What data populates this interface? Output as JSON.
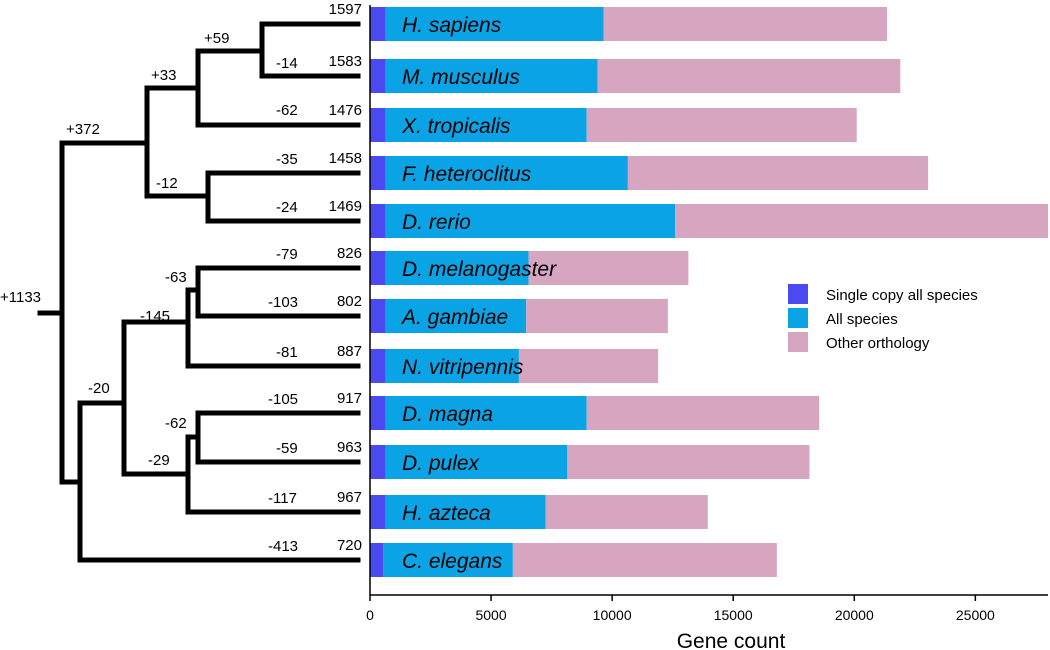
{
  "chart_data": {
    "type": "bar",
    "orientation": "horizontal",
    "stacked": true,
    "xlabel": "Gene count",
    "xlim": [
      0,
      28000
    ],
    "xticks": [
      0,
      5000,
      10000,
      15000,
      20000,
      25000
    ],
    "legend_position": "right",
    "categories": [
      "H. sapiens",
      "M. musculus",
      "X. tropicalis",
      "F. heteroclitus",
      "D. rerio",
      "D. melanogaster",
      "A. gambiae",
      "N. vitripennis",
      "D. magna",
      "D. pulex",
      "H. azteca",
      "C. elegans"
    ],
    "series": [
      {
        "name": "Single copy all species",
        "color": "#4A4AF0",
        "values": [
          650,
          650,
          650,
          650,
          650,
          650,
          650,
          650,
          650,
          650,
          650,
          540
        ]
      },
      {
        "name": "All species",
        "color": "#0AA4E6",
        "values": [
          9000,
          8750,
          8300,
          10000,
          11950,
          5900,
          5800,
          5500,
          8300,
          7500,
          6600,
          5360
        ]
      },
      {
        "name": "Other orthology",
        "color": "#D6A5C0",
        "values": [
          11700,
          12500,
          11150,
          12400,
          15400,
          6600,
          5850,
          5750,
          9600,
          10000,
          6700,
          10900
        ]
      }
    ],
    "counts": [
      "1597",
      "1583",
      "1476",
      "1458",
      "1469",
      "826",
      "802",
      "887",
      "917",
      "963",
      "967",
      "720"
    ],
    "tree_labels": {
      "root": "+1133",
      "vertebrates": "+372",
      "tetrapods": "+33",
      "mammals": "+59",
      "mmus": "-14",
      "xtrop": "-62",
      "fish": "-12",
      "fhet": "-35",
      "drer": "-24",
      "protostomes": "-20",
      "insects": "-145",
      "dipterans": "-63",
      "dmel": "-79",
      "agam": "-103",
      "nvit": "-81",
      "crustaceans": "-29",
      "daphnia": "-62",
      "dmag": "-105",
      "dpul": "-59",
      "hazt": "-117",
      "cele": "-413"
    }
  }
}
